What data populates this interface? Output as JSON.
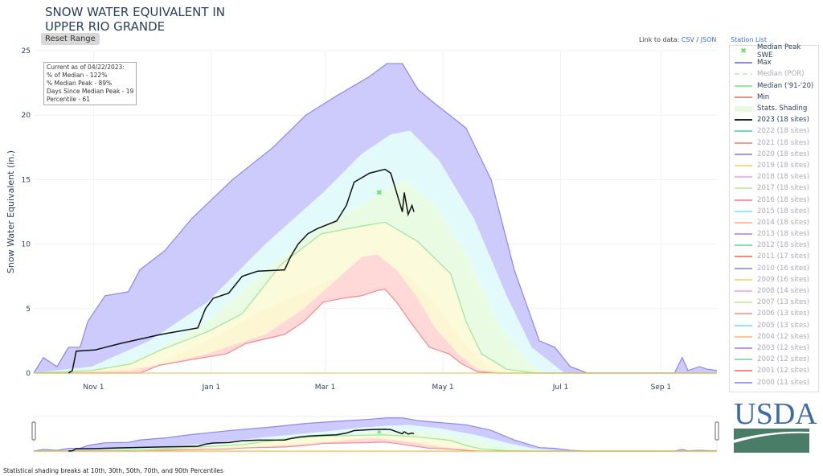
{
  "header": {
    "title_line1": "SNOW WATER EQUIVALENT IN",
    "title_line2": "UPPER RIO GRANDE",
    "reset_label": "Reset Range",
    "link_prefix": "Link to data: ",
    "csv": "CSV",
    "sep": " / ",
    "json": "JSON",
    "station_list": "Station List"
  },
  "info_box": [
    "Current as of 04/22/2023:",
    "% of Median - 122%",
    "% Median Peak - 89%",
    "Days Since Median Peak - 19",
    "Percentile - 61"
  ],
  "footnote": "Statistical shading breaks at 10th, 30th, 50th, 70th, and 90th Percentiles",
  "logo_text": "USDA",
  "legend": [
    {
      "label": "Median Peak SWE",
      "color": "#5ee65e",
      "on": true,
      "marker": true
    },
    {
      "label": "Max",
      "color": "#8b85f5",
      "on": true
    },
    {
      "label": "Median (POR)",
      "color": "#c8f0c8",
      "on": false,
      "dash": true
    },
    {
      "label": "Median ('91-'20)",
      "color": "#9be89b",
      "on": true
    },
    {
      "label": "Min",
      "color": "#f58a8a",
      "on": true
    },
    {
      "label": "Stats. Shading",
      "color": "#e8fbe0",
      "on": true,
      "thick": true
    },
    {
      "label": "2023 (18 sites)",
      "color": "#1a2a1a",
      "on": true
    },
    {
      "label": "2022 (18 sites)",
      "color": "#6fdbb5",
      "on": false
    },
    {
      "label": "2021 (18 sites)",
      "color": "#f59a8a",
      "on": false
    },
    {
      "label": "2020 (18 sites)",
      "color": "#9a9af5",
      "on": false
    },
    {
      "label": "2019 (18 sites)",
      "color": "#fbd98a",
      "on": false
    },
    {
      "label": "2018 (18 sites)",
      "color": "#f9b3f0",
      "on": false
    },
    {
      "label": "2017 (18 sites)",
      "color": "#c8f0a8",
      "on": false
    },
    {
      "label": "2016 (18 sites)",
      "color": "#f79aa8",
      "on": false
    },
    {
      "label": "2015 (18 sites)",
      "color": "#9ae8f5",
      "on": false
    },
    {
      "label": "2014 (18 sites)",
      "color": "#fbc09a",
      "on": false
    },
    {
      "label": "2013 (18 sites)",
      "color": "#c09af5",
      "on": false
    },
    {
      "label": "2012 (18 sites)",
      "color": "#7fe0b0",
      "on": false
    },
    {
      "label": "2011 (17 sites)",
      "color": "#f58a7a",
      "on": false
    },
    {
      "label": "2010 (16 sites)",
      "color": "#9aa0f5",
      "on": false
    },
    {
      "label": "2009 (16 sites)",
      "color": "#fbd98a",
      "on": false
    },
    {
      "label": "2008 (14 sites)",
      "color": "#f9b3f5",
      "on": false
    },
    {
      "label": "2007 (13 sites)",
      "color": "#d0eab0",
      "on": false
    },
    {
      "label": "2006 (13 sites)",
      "color": "#f7a8a8",
      "on": false
    },
    {
      "label": "2005 (13 sites)",
      "color": "#9ae0f5",
      "on": false
    },
    {
      "label": "2004 (12 sites)",
      "color": "#fbc8a0",
      "on": false
    },
    {
      "label": "2003 (12 sites)",
      "color": "#b89af5",
      "on": false
    },
    {
      "label": "2002 (12 sites)",
      "color": "#8fe0b8",
      "on": false
    },
    {
      "label": "2001 (12 sites)",
      "color": "#f58a7a",
      "on": false
    },
    {
      "label": "2000 (11 sites)",
      "color": "#9aa0f5",
      "on": false
    }
  ],
  "chart_data": {
    "type": "area",
    "ylabel": "Snow Water Equivalent (in.)",
    "xlabel": "",
    "x_unit": "day of water year (0 = Oct 1)",
    "ylim": [
      0,
      25
    ],
    "yticks": [
      0,
      5,
      10,
      15,
      20,
      25
    ],
    "xticks": [
      {
        "label": "Nov 1",
        "day": 31
      },
      {
        "label": "Jan 1",
        "day": 92
      },
      {
        "label": "Mar 1",
        "day": 151
      },
      {
        "label": "May 1",
        "day": 212
      },
      {
        "label": "Jul 1",
        "day": 273
      },
      {
        "label": "Sep 1",
        "day": 325
      }
    ],
    "xlim": [
      0,
      354
    ],
    "colors": {
      "max_band": "#cdcafc",
      "p90_band": "#e2fafa",
      "p70_band": "#eafbe4",
      "p50_band": "#fbfbdc",
      "p30_band": "#fcf6d2",
      "p10_band": "#ffd8d8",
      "max": "#8b85f5",
      "median": "#9be89b",
      "min": "#f58a8a",
      "y2023": "#111"
    },
    "series": {
      "max": [
        [
          0,
          0
        ],
        [
          5,
          1.2
        ],
        [
          12,
          0.5
        ],
        [
          18,
          2
        ],
        [
          24,
          2
        ],
        [
          28,
          4
        ],
        [
          37,
          6
        ],
        [
          49,
          6.3
        ],
        [
          55,
          8
        ],
        [
          68,
          9.5
        ],
        [
          82,
          12
        ],
        [
          103,
          15
        ],
        [
          124,
          17.5
        ],
        [
          141,
          20
        ],
        [
          157,
          21.5
        ],
        [
          174,
          23
        ],
        [
          183,
          24
        ],
        [
          191,
          24
        ],
        [
          199,
          22
        ],
        [
          207,
          21
        ],
        [
          224,
          19
        ],
        [
          237,
          15
        ],
        [
          249,
          8
        ],
        [
          262,
          2.5
        ],
        [
          270,
          2
        ],
        [
          278,
          0.5
        ],
        [
          287,
          0
        ],
        [
          332,
          0
        ],
        [
          336,
          1.2
        ],
        [
          339,
          0.2
        ],
        [
          345,
          0.5
        ],
        [
          349,
          0.3
        ],
        [
          354,
          0.2
        ]
      ],
      "p90": [
        [
          0,
          0
        ],
        [
          30,
          0.5
        ],
        [
          60,
          2.5
        ],
        [
          90,
          5.5
        ],
        [
          120,
          10
        ],
        [
          150,
          14
        ],
        [
          170,
          17
        ],
        [
          185,
          18.5
        ],
        [
          195,
          18.8
        ],
        [
          210,
          16.5
        ],
        [
          228,
          12
        ],
        [
          245,
          6
        ],
        [
          258,
          2
        ],
        [
          275,
          0
        ],
        [
          354,
          0
        ]
      ],
      "p70": [
        [
          0,
          0
        ],
        [
          40,
          0.5
        ],
        [
          60,
          1.5
        ],
        [
          90,
          4
        ],
        [
          120,
          8
        ],
        [
          150,
          11.5
        ],
        [
          175,
          13.5
        ],
        [
          192,
          15
        ],
        [
          208,
          13
        ],
        [
          225,
          9
        ],
        [
          240,
          4
        ],
        [
          255,
          1
        ],
        [
          265,
          0
        ],
        [
          354,
          0
        ]
      ],
      "median": [
        [
          0,
          0
        ],
        [
          30,
          0.2
        ],
        [
          50,
          0.7
        ],
        [
          66,
          1.8
        ],
        [
          90,
          3.2
        ],
        [
          108,
          4.6
        ],
        [
          128,
          8.4
        ],
        [
          149,
          10.8
        ],
        [
          170,
          11.4
        ],
        [
          182,
          11.7
        ],
        [
          199,
          10.2
        ],
        [
          216,
          7.7
        ],
        [
          224,
          4
        ],
        [
          232,
          1.5
        ],
        [
          245,
          0.3
        ],
        [
          260,
          0
        ],
        [
          354,
          0
        ]
      ],
      "p30": [
        [
          0,
          0
        ],
        [
          60,
          0.5
        ],
        [
          90,
          2.5
        ],
        [
          120,
          5
        ],
        [
          150,
          7
        ],
        [
          170,
          8
        ],
        [
          182,
          8.5
        ],
        [
          195,
          7.5
        ],
        [
          210,
          5
        ],
        [
          225,
          2
        ],
        [
          235,
          0.5
        ],
        [
          245,
          0
        ],
        [
          354,
          0
        ]
      ],
      "p10": [
        [
          0,
          0
        ],
        [
          50,
          0.2
        ],
        [
          70,
          0.8
        ],
        [
          90,
          1.5
        ],
        [
          120,
          3
        ],
        [
          140,
          5
        ],
        [
          155,
          7
        ],
        [
          170,
          9
        ],
        [
          178,
          9.2
        ],
        [
          188,
          8
        ],
        [
          198,
          6
        ],
        [
          208,
          3.5
        ],
        [
          220,
          1.5
        ],
        [
          230,
          0.3
        ],
        [
          240,
          0
        ],
        [
          354,
          0
        ]
      ],
      "min": [
        [
          0,
          0
        ],
        [
          55,
          0
        ],
        [
          65,
          0.6
        ],
        [
          80,
          1
        ],
        [
          100,
          1.5
        ],
        [
          110,
          2.3
        ],
        [
          130,
          3
        ],
        [
          140,
          4
        ],
        [
          150,
          5.5
        ],
        [
          160,
          5.8
        ],
        [
          170,
          6
        ],
        [
          178,
          6.4
        ],
        [
          182,
          6.5
        ],
        [
          188,
          5.5
        ],
        [
          195,
          4
        ],
        [
          200,
          3
        ],
        [
          205,
          2
        ],
        [
          215,
          1.5
        ],
        [
          222,
          0.7
        ],
        [
          230,
          0.1
        ],
        [
          240,
          0
        ],
        [
          354,
          0
        ]
      ],
      "y2023": [
        [
          18,
          0
        ],
        [
          20,
          0.2
        ],
        [
          22,
          1.7
        ],
        [
          32,
          1.8
        ],
        [
          45,
          2.3
        ],
        [
          66,
          3
        ],
        [
          85,
          3.5
        ],
        [
          89,
          5
        ],
        [
          93,
          5.8
        ],
        [
          101,
          6.2
        ],
        [
          108,
          7.5
        ],
        [
          116,
          7.9
        ],
        [
          130,
          8
        ],
        [
          133,
          9
        ],
        [
          137,
          10
        ],
        [
          142,
          10.8
        ],
        [
          147,
          11.2
        ],
        [
          157,
          11.8
        ],
        [
          162,
          13
        ],
        [
          166,
          14.8
        ],
        [
          174,
          15.5
        ],
        [
          182,
          15.8
        ],
        [
          185,
          15.5
        ],
        [
          189,
          13.5
        ],
        [
          191,
          12.5
        ],
        [
          192,
          14
        ],
        [
          194,
          12.3
        ],
        [
          196,
          13
        ],
        [
          197,
          12.5
        ]
      ]
    },
    "median_peak": {
      "day": 179,
      "value": 14.0
    }
  }
}
